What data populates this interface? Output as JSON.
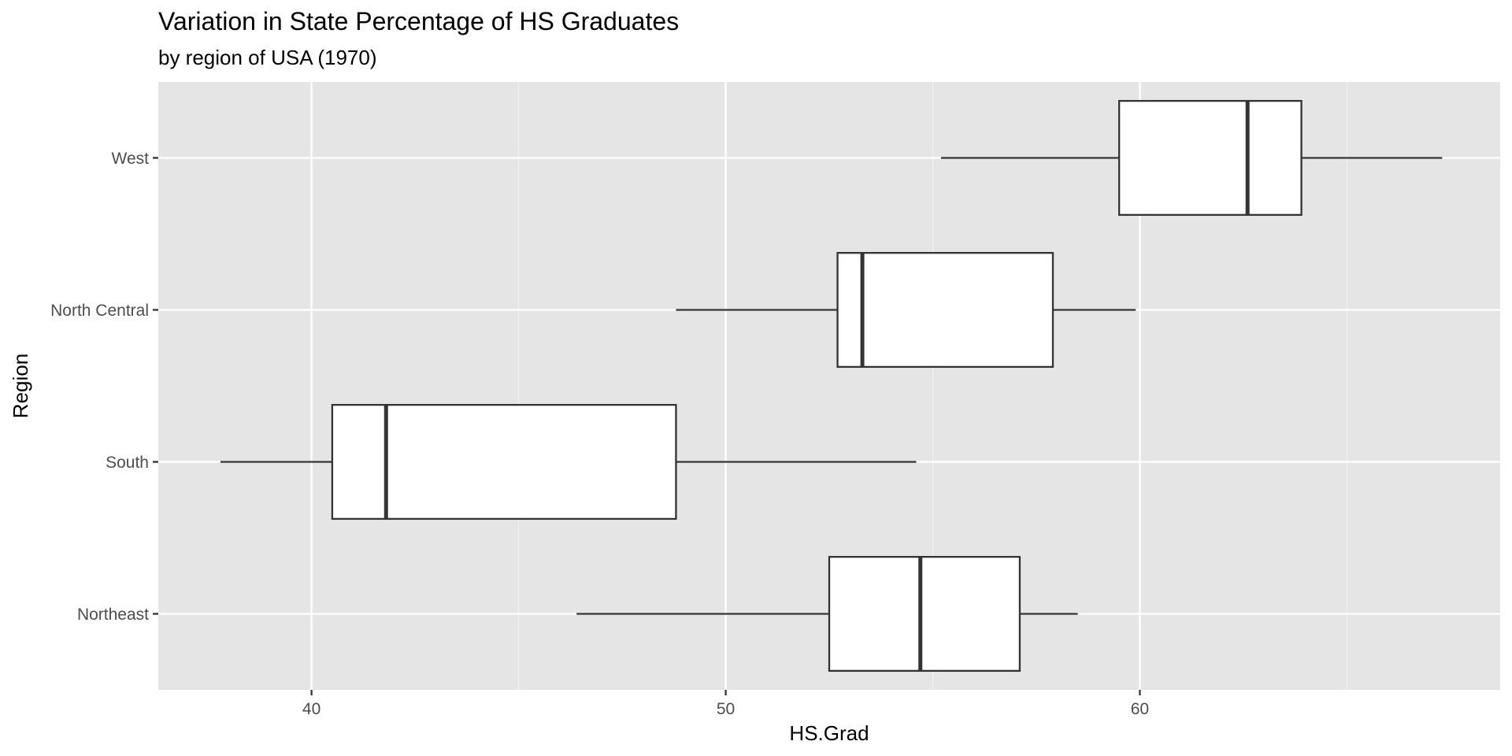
{
  "chart_data": {
    "type": "boxplot",
    "orientation": "horizontal",
    "title": "Variation in State Percentage of HS Graduates",
    "subtitle": "by region of USA (1970)",
    "xlabel": "HS.Grad",
    "ylabel": "Region",
    "xlim": [
      36.3,
      68.7
    ],
    "x_ticks": [
      40,
      50,
      60
    ],
    "categories": [
      "Northeast",
      "South",
      "North Central",
      "West"
    ],
    "boxes": [
      {
        "category": "Northeast",
        "min": 46.4,
        "q1": 52.5,
        "median": 54.7,
        "q3": 57.1,
        "max": 58.5
      },
      {
        "category": "South",
        "min": 37.8,
        "q1": 40.5,
        "median": 41.8,
        "q3": 48.8,
        "max": 54.6
      },
      {
        "category": "North Central",
        "min": 48.8,
        "q1": 52.7,
        "median": 53.3,
        "q3": 57.9,
        "max": 59.9
      },
      {
        "category": "West",
        "min": 55.2,
        "q1": 59.5,
        "median": 62.6,
        "q3": 63.9,
        "max": 67.3
      }
    ],
    "grid": true,
    "legend": "none",
    "colors": {
      "panel_background": "#e5e5e5",
      "grid_major": "#ffffff",
      "grid_minor": "#f2f2f2",
      "box_fill": "#ffffff",
      "box_stroke": "#333333",
      "tick_label": "#4d4d4d",
      "tick_mark": "#333333"
    }
  }
}
